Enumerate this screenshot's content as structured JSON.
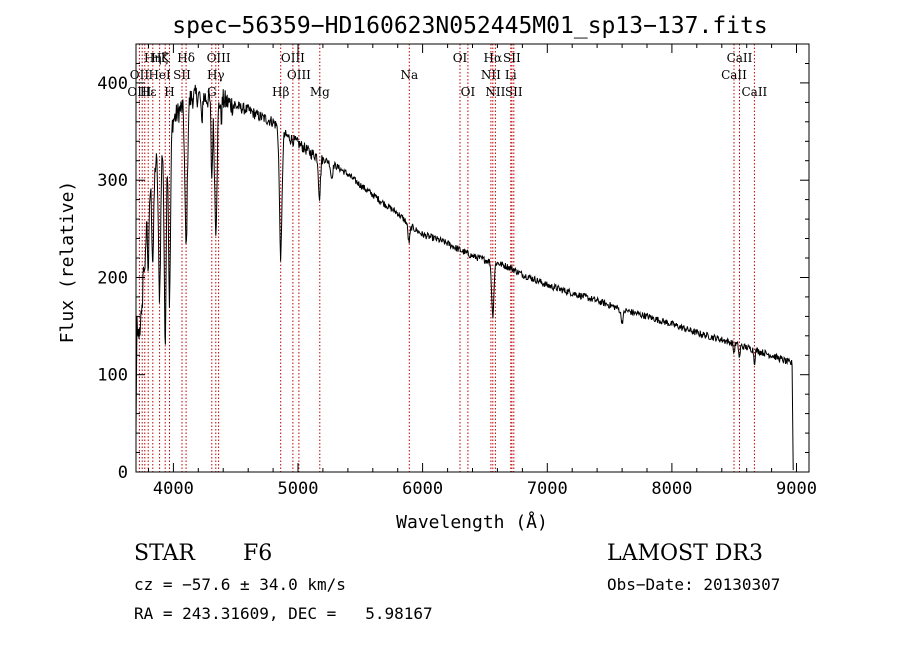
{
  "chart_data": {
    "type": "line",
    "title": "spec−56359−HD160623N052445M01_sp13−137.fits",
    "xlabel": "Wavelength (Å)",
    "ylabel": "Flux (relative)",
    "xlim": [
      3700,
      9100
    ],
    "ylim": [
      0,
      440
    ],
    "x_ticks": [
      4000,
      5000,
      6000,
      7000,
      8000,
      9000
    ],
    "y_ticks": [
      0,
      100,
      200,
      300,
      400
    ],
    "grid": false,
    "series": [
      {
        "name": "flux",
        "continuum": [
          [
            3700,
            240
          ],
          [
            3760,
            275
          ],
          [
            3820,
            300
          ],
          [
            3880,
            330
          ],
          [
            3950,
            350
          ],
          [
            4000,
            362
          ],
          [
            4050,
            372
          ],
          [
            4100,
            380
          ],
          [
            4150,
            385
          ],
          [
            4200,
            387
          ],
          [
            4300,
            383
          ],
          [
            4400,
            382
          ],
          [
            4500,
            376
          ],
          [
            4600,
            372
          ],
          [
            4700,
            365
          ],
          [
            4800,
            360
          ],
          [
            4900,
            346
          ],
          [
            5000,
            338
          ],
          [
            5100,
            328
          ],
          [
            5200,
            322
          ],
          [
            5300,
            315
          ],
          [
            5400,
            306
          ],
          [
            5500,
            295
          ],
          [
            5600,
            285
          ],
          [
            5700,
            275
          ],
          [
            5800,
            266
          ],
          [
            5900,
            253
          ],
          [
            6000,
            244
          ],
          [
            6100,
            240
          ],
          [
            6200,
            235
          ],
          [
            6300,
            228
          ],
          [
            6400,
            222
          ],
          [
            6500,
            218
          ],
          [
            6600,
            215
          ],
          [
            6700,
            210
          ],
          [
            6800,
            203
          ],
          [
            6900,
            198
          ],
          [
            7000,
            192
          ],
          [
            7200,
            184
          ],
          [
            7400,
            176
          ],
          [
            7600,
            167
          ],
          [
            7800,
            160
          ],
          [
            8000,
            152
          ],
          [
            8200,
            143
          ],
          [
            8400,
            136
          ],
          [
            8600,
            128
          ],
          [
            8800,
            120
          ],
          [
            8950,
            112
          ]
        ],
        "absorption": [
          [
            3705,
            120,
            30
          ],
          [
            3734,
            45,
            6
          ],
          [
            3750,
            60,
            6
          ],
          [
            3771,
            70,
            7
          ],
          [
            3798,
            80,
            7
          ],
          [
            3835,
            90,
            8
          ],
          [
            3889,
            150,
            9
          ],
          [
            3934,
            210,
            8
          ],
          [
            3969,
            180,
            8
          ],
          [
            4102,
            150,
            10
          ],
          [
            4227,
            30,
            5
          ],
          [
            4308,
            80,
            6
          ],
          [
            4340,
            130,
            10
          ],
          [
            4384,
            20,
            5
          ],
          [
            4861,
            130,
            10
          ],
          [
            5172,
            40,
            8
          ],
          [
            5270,
            15,
            8
          ],
          [
            5890,
            18,
            8
          ],
          [
            6563,
            55,
            9
          ],
          [
            7600,
            12,
            10
          ],
          [
            8498,
            10,
            5
          ],
          [
            8542,
            14,
            5
          ],
          [
            8662,
            13,
            5
          ]
        ]
      }
    ],
    "line_labels": [
      {
        "label": "Hη",
        "row": 1,
        "wavelength": 3835
      },
      {
        "label": "Hζ",
        "row": 1,
        "wavelength": 3889
      },
      {
        "label": "K",
        "row": 1,
        "wavelength": 3934
      },
      {
        "label": "Hδ",
        "row": 1,
        "wavelength": 4102
      },
      {
        "label": "OIII",
        "row": 1,
        "wavelength": 4363
      },
      {
        "label": "OIII",
        "row": 1,
        "wavelength": 4959
      },
      {
        "label": "OI",
        "row": 1,
        "wavelength": 6300
      },
      {
        "label": "Hα",
        "row": 1,
        "wavelength": 6563
      },
      {
        "label": "SII",
        "row": 1,
        "wavelength": 6716
      },
      {
        "label": "CaII",
        "row": 1,
        "wavelength": 8542
      },
      {
        "label": "OII",
        "row": 2,
        "wavelength": 3727
      },
      {
        "label": "HeI",
        "row": 2,
        "wavelength": 3889
      },
      {
        "label": "SII",
        "row": 2,
        "wavelength": 4069
      },
      {
        "label": "Hγ",
        "row": 2,
        "wavelength": 4340
      },
      {
        "label": "OIII",
        "row": 2,
        "wavelength": 5007
      },
      {
        "label": "Na",
        "row": 2,
        "wavelength": 5893
      },
      {
        "label": "NII",
        "row": 2,
        "wavelength": 6548
      },
      {
        "label": "Li",
        "row": 2,
        "wavelength": 6707
      },
      {
        "label": "CaII",
        "row": 2,
        "wavelength": 8498
      },
      {
        "label": "OIII",
        "row": 3,
        "wavelength": 3727
      },
      {
        "label": "Hε",
        "row": 3,
        "wavelength": 3798
      },
      {
        "label": "H",
        "row": 3,
        "wavelength": 3969
      },
      {
        "label": "G",
        "row": 3,
        "wavelength": 4308
      },
      {
        "label": "Hβ",
        "row": 3,
        "wavelength": 4861
      },
      {
        "label": "Mg",
        "row": 3,
        "wavelength": 5175
      },
      {
        "label": "OI",
        "row": 3,
        "wavelength": 6363
      },
      {
        "label": "NII",
        "row": 3,
        "wavelength": 6584
      },
      {
        "label": "SII",
        "row": 3,
        "wavelength": 6731
      },
      {
        "label": "CaII",
        "row": 3,
        "wavelength": 8662
      }
    ],
    "marker_lines": [
      3727,
      3750,
      3771,
      3798,
      3835,
      3889,
      3934,
      3969,
      4069,
      4102,
      4308,
      4340,
      4363,
      4861,
      4959,
      5007,
      5175,
      5893,
      6300,
      6363,
      6548,
      6563,
      6584,
      6707,
      6716,
      6731,
      8498,
      8542,
      8662
    ],
    "colors": {
      "spectrum": "#000000",
      "markers": "#c00000",
      "axes": "#000000"
    }
  },
  "info": {
    "object_class": "STAR",
    "subclass": "F6",
    "survey": "LAMOST DR3",
    "redshift": "cz = −57.6 ± 34.0 km/s",
    "obs_date": "Obs−Date: 20130307",
    "coords": "RA = 243.31609, DEC =   5.98167"
  }
}
